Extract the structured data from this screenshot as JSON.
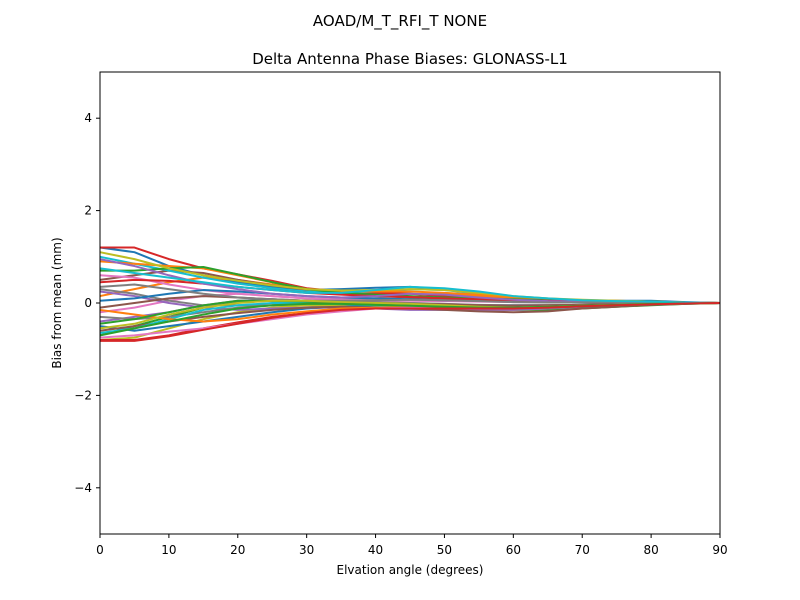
{
  "chart_data": {
    "type": "line",
    "suptitle": "AOAD/M_T_RFI_T  NONE",
    "title": "Delta Antenna Phase Biases: GLONASS-L1",
    "xlabel": "Elvation angle (degrees)",
    "ylabel": "Bias from mean (mm)",
    "xlim": [
      0,
      90
    ],
    "ylim": [
      -5,
      5
    ],
    "xticks": [
      0,
      10,
      20,
      30,
      40,
      50,
      60,
      70,
      80,
      90
    ],
    "xtick_labels": [
      "0",
      "10",
      "20",
      "30",
      "40",
      "50",
      "60",
      "70",
      "80",
      "90"
    ],
    "yticks": [
      -4,
      -2,
      0,
      2,
      4
    ],
    "ytick_labels": [
      "−4",
      "−2",
      "0",
      "2",
      "4"
    ],
    "grid": false,
    "legend": "none",
    "x": [
      0,
      5,
      10,
      15,
      20,
      25,
      30,
      35,
      40,
      45,
      50,
      55,
      60,
      65,
      70,
      75,
      80,
      85,
      90
    ],
    "series": [
      {
        "color": "#1f77b4",
        "values": [
          1.2,
          1.1,
          0.8,
          0.6,
          0.45,
          0.35,
          0.28,
          0.3,
          0.33,
          0.35,
          0.3,
          0.2,
          0.1,
          0.05,
          0.05,
          0.05,
          0.05,
          0.02,
          0.0
        ]
      },
      {
        "color": "#ff7f0e",
        "values": [
          0.15,
          0.3,
          0.45,
          0.55,
          0.5,
          0.4,
          0.3,
          0.22,
          0.2,
          0.2,
          0.18,
          0.15,
          0.1,
          0.08,
          0.06,
          0.05,
          0.03,
          0.01,
          0.0
        ]
      },
      {
        "color": "#2ca02c",
        "values": [
          -0.7,
          -0.5,
          -0.3,
          -0.1,
          0.02,
          0.05,
          0.03,
          0.0,
          -0.05,
          -0.1,
          -0.12,
          -0.15,
          -0.15,
          -0.15,
          -0.12,
          -0.08,
          -0.05,
          -0.02,
          0.0
        ]
      },
      {
        "color": "#d62728",
        "values": [
          1.2,
          1.2,
          0.95,
          0.75,
          0.62,
          0.48,
          0.32,
          0.25,
          0.22,
          0.2,
          0.15,
          0.1,
          0.05,
          0.03,
          0.02,
          0.02,
          0.02,
          0.01,
          0.0
        ]
      },
      {
        "color": "#9467bd",
        "values": [
          -0.4,
          -0.3,
          -0.2,
          -0.05,
          0.05,
          0.08,
          0.05,
          0.02,
          0.0,
          -0.03,
          -0.05,
          -0.08,
          -0.1,
          -0.08,
          -0.05,
          -0.03,
          -0.02,
          -0.01,
          0.0
        ]
      },
      {
        "color": "#8c564b",
        "values": [
          0.5,
          0.6,
          0.7,
          0.65,
          0.5,
          0.38,
          0.28,
          0.2,
          0.15,
          0.12,
          0.1,
          0.08,
          0.06,
          0.05,
          0.04,
          0.03,
          0.02,
          0.01,
          0.0
        ]
      },
      {
        "color": "#e377c2",
        "values": [
          -0.2,
          -0.1,
          0.05,
          0.15,
          0.2,
          0.15,
          0.1,
          0.05,
          0.02,
          0.0,
          -0.02,
          -0.05,
          -0.07,
          -0.06,
          -0.04,
          -0.02,
          -0.01,
          0.0,
          0.0
        ]
      },
      {
        "color": "#7f7f7f",
        "values": [
          0.3,
          0.2,
          0.05,
          -0.05,
          -0.05,
          -0.05,
          -0.05,
          -0.08,
          -0.1,
          -0.1,
          -0.1,
          -0.1,
          -0.1,
          -0.08,
          -0.05,
          -0.03,
          -0.02,
          -0.01,
          0.0
        ]
      },
      {
        "color": "#bcbd22",
        "values": [
          -0.8,
          -0.75,
          -0.55,
          -0.35,
          -0.2,
          -0.1,
          -0.05,
          -0.05,
          -0.08,
          -0.1,
          -0.12,
          -0.15,
          -0.15,
          -0.12,
          -0.08,
          -0.05,
          -0.03,
          -0.01,
          0.0
        ]
      },
      {
        "color": "#17becf",
        "values": [
          1.0,
          0.85,
          0.7,
          0.55,
          0.42,
          0.32,
          0.25,
          0.22,
          0.25,
          0.3,
          0.28,
          0.2,
          0.12,
          0.08,
          0.05,
          0.04,
          0.03,
          0.01,
          0.0
        ]
      },
      {
        "color": "#1f77b4",
        "values": [
          -0.5,
          -0.6,
          -0.5,
          -0.4,
          -0.3,
          -0.2,
          -0.12,
          -0.08,
          -0.05,
          -0.05,
          -0.05,
          -0.05,
          -0.05,
          -0.05,
          -0.04,
          -0.03,
          -0.02,
          -0.01,
          0.0
        ]
      },
      {
        "color": "#ff7f0e",
        "values": [
          0.9,
          0.85,
          0.8,
          0.75,
          0.6,
          0.45,
          0.3,
          0.25,
          0.25,
          0.25,
          0.22,
          0.18,
          0.12,
          0.08,
          0.05,
          0.04,
          0.03,
          0.01,
          0.0
        ]
      },
      {
        "color": "#2ca02c",
        "values": [
          0.7,
          0.7,
          0.75,
          0.78,
          0.62,
          0.45,
          0.3,
          0.22,
          0.18,
          0.15,
          0.12,
          0.1,
          0.08,
          0.06,
          0.05,
          0.04,
          0.03,
          0.01,
          0.0
        ]
      },
      {
        "color": "#d62728",
        "values": [
          -0.8,
          -0.8,
          -0.7,
          -0.55,
          -0.42,
          -0.3,
          -0.22,
          -0.15,
          -0.1,
          -0.08,
          -0.08,
          -0.08,
          -0.08,
          -0.07,
          -0.06,
          -0.04,
          -0.02,
          -0.01,
          0.0
        ]
      },
      {
        "color": "#9467bd",
        "values": [
          0.25,
          0.15,
          0.0,
          -0.1,
          -0.15,
          -0.12,
          -0.1,
          -0.1,
          -0.12,
          -0.15,
          -0.15,
          -0.15,
          -0.15,
          -0.12,
          -0.08,
          -0.05,
          -0.03,
          -0.01,
          0.0
        ]
      },
      {
        "color": "#8c564b",
        "values": [
          -0.6,
          -0.5,
          -0.4,
          -0.3,
          -0.22,
          -0.15,
          -0.1,
          -0.08,
          -0.1,
          -0.12,
          -0.15,
          -0.18,
          -0.2,
          -0.18,
          -0.12,
          -0.08,
          -0.04,
          -0.02,
          0.0
        ]
      },
      {
        "color": "#e377c2",
        "values": [
          0.6,
          0.55,
          0.4,
          0.28,
          0.2,
          0.15,
          0.1,
          0.08,
          0.06,
          0.05,
          0.04,
          0.03,
          0.02,
          0.02,
          0.01,
          0.01,
          0.01,
          0.0,
          0.0
        ]
      },
      {
        "color": "#7f7f7f",
        "values": [
          -0.3,
          -0.35,
          -0.3,
          -0.2,
          -0.1,
          -0.05,
          0.0,
          0.02,
          0.02,
          0.0,
          -0.02,
          -0.04,
          -0.05,
          -0.05,
          -0.04,
          -0.03,
          -0.02,
          -0.01,
          0.0
        ]
      },
      {
        "color": "#bcbd22",
        "values": [
          1.1,
          0.95,
          0.75,
          0.6,
          0.48,
          0.38,
          0.3,
          0.27,
          0.28,
          0.3,
          0.28,
          0.22,
          0.15,
          0.1,
          0.07,
          0.05,
          0.03,
          0.01,
          0.0
        ]
      },
      {
        "color": "#17becf",
        "values": [
          -0.65,
          -0.55,
          -0.35,
          -0.15,
          -0.05,
          0.0,
          0.0,
          -0.02,
          -0.05,
          -0.08,
          -0.1,
          -0.12,
          -0.12,
          -0.1,
          -0.07,
          -0.05,
          -0.03,
          -0.01,
          0.0
        ]
      },
      {
        "color": "#1f77b4",
        "values": [
          0.05,
          0.1,
          0.2,
          0.28,
          0.25,
          0.2,
          0.15,
          0.12,
          0.1,
          0.08,
          0.06,
          0.05,
          0.04,
          0.03,
          0.02,
          0.02,
          0.01,
          0.0,
          0.0
        ]
      },
      {
        "color": "#ff7f0e",
        "values": [
          -0.15,
          -0.25,
          -0.35,
          -0.4,
          -0.35,
          -0.25,
          -0.18,
          -0.12,
          -0.1,
          -0.08,
          -0.08,
          -0.08,
          -0.07,
          -0.06,
          -0.05,
          -0.03,
          -0.02,
          -0.01,
          0.0
        ]
      },
      {
        "color": "#2ca02c",
        "values": [
          -0.45,
          -0.35,
          -0.2,
          -0.05,
          0.05,
          0.05,
          0.03,
          0.0,
          -0.03,
          -0.05,
          -0.07,
          -0.1,
          -0.1,
          -0.1,
          -0.07,
          -0.05,
          -0.03,
          -0.01,
          0.0
        ]
      },
      {
        "color": "#d62728",
        "values": [
          0.45,
          0.5,
          0.48,
          0.42,
          0.35,
          0.28,
          0.22,
          0.18,
          0.15,
          0.13,
          0.1,
          0.08,
          0.06,
          0.05,
          0.04,
          0.03,
          0.02,
          0.01,
          0.0
        ]
      },
      {
        "color": "#9467bd",
        "values": [
          0.95,
          0.8,
          0.6,
          0.42,
          0.3,
          0.2,
          0.15,
          0.12,
          0.15,
          0.2,
          0.18,
          0.12,
          0.07,
          0.04,
          0.03,
          0.02,
          0.02,
          0.01,
          0.0
        ]
      },
      {
        "color": "#8c564b",
        "values": [
          -0.1,
          0.0,
          0.1,
          0.15,
          0.12,
          0.08,
          0.05,
          0.02,
          0.0,
          -0.02,
          -0.03,
          -0.05,
          -0.06,
          -0.05,
          -0.04,
          -0.02,
          -0.01,
          0.0,
          0.0
        ]
      },
      {
        "color": "#e377c2",
        "values": [
          -0.75,
          -0.7,
          -0.62,
          -0.55,
          -0.45,
          -0.35,
          -0.25,
          -0.18,
          -0.12,
          -0.1,
          -0.1,
          -0.1,
          -0.1,
          -0.08,
          -0.06,
          -0.04,
          -0.02,
          -0.01,
          0.0
        ]
      },
      {
        "color": "#7f7f7f",
        "values": [
          0.35,
          0.4,
          0.3,
          0.2,
          0.12,
          0.08,
          0.05,
          0.05,
          0.06,
          0.07,
          0.06,
          0.04,
          0.02,
          0.01,
          0.01,
          0.01,
          0.0,
          0.0,
          0.0
        ]
      },
      {
        "color": "#bcbd22",
        "values": [
          -0.55,
          -0.45,
          -0.25,
          -0.1,
          0.0,
          0.05,
          0.05,
          0.02,
          0.0,
          -0.02,
          -0.05,
          -0.08,
          -0.1,
          -0.08,
          -0.06,
          -0.04,
          -0.02,
          -0.01,
          0.0
        ]
      },
      {
        "color": "#17becf",
        "values": [
          0.75,
          0.65,
          0.55,
          0.45,
          0.35,
          0.28,
          0.22,
          0.22,
          0.28,
          0.35,
          0.32,
          0.25,
          0.15,
          0.1,
          0.06,
          0.04,
          0.03,
          0.01,
          0.0
        ]
      },
      {
        "color": "#2ca02c",
        "values": [
          -0.7,
          -0.55,
          -0.4,
          -0.25,
          -0.12,
          -0.05,
          -0.02,
          -0.02,
          -0.04,
          -0.06,
          -0.08,
          -0.1,
          -0.1,
          -0.08,
          -0.06,
          -0.04,
          -0.02,
          -0.01,
          0.0
        ]
      },
      {
        "color": "#d62728",
        "values": [
          -0.82,
          -0.82,
          -0.72,
          -0.58,
          -0.45,
          -0.32,
          -0.22,
          -0.15,
          -0.12,
          -0.12,
          -0.12,
          -0.12,
          -0.12,
          -0.1,
          -0.07,
          -0.05,
          -0.03,
          -0.01,
          0.0
        ]
      }
    ]
  }
}
